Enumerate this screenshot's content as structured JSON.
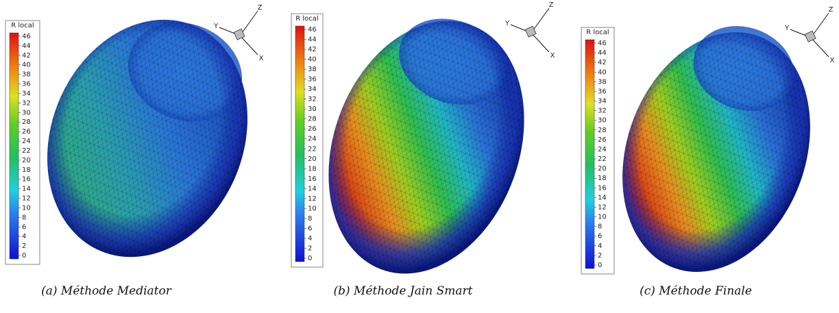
{
  "panels": [
    {
      "legend_title": "R local",
      "legend_ticks": [
        0,
        2,
        4,
        6,
        8,
        10,
        12,
        14,
        16,
        18,
        20,
        22,
        24,
        26,
        28,
        30,
        32,
        34,
        36,
        38,
        40,
        42,
        44,
        46
      ],
      "axes": [
        "X",
        "Y",
        "Z"
      ],
      "caption": "(a) Méthode Mediator"
    },
    {
      "legend_title": "R local",
      "legend_ticks": [
        0,
        2,
        4,
        6,
        8,
        10,
        12,
        14,
        16,
        18,
        20,
        22,
        24,
        26,
        28,
        30,
        32,
        34,
        36,
        38,
        40,
        42,
        44,
        46
      ],
      "axes": [
        "X",
        "Y",
        "Z"
      ],
      "caption": "(b) Méthode Jain Smart"
    },
    {
      "legend_title": "R local",
      "legend_ticks": [
        0,
        2,
        4,
        6,
        8,
        10,
        12,
        14,
        16,
        18,
        20,
        22,
        24,
        26,
        28,
        30,
        32,
        34,
        36,
        38,
        40,
        42,
        44,
        46
      ],
      "axes": [
        "X",
        "Y",
        "Z"
      ],
      "caption": "(c) Méthode Finale"
    }
  ]
}
